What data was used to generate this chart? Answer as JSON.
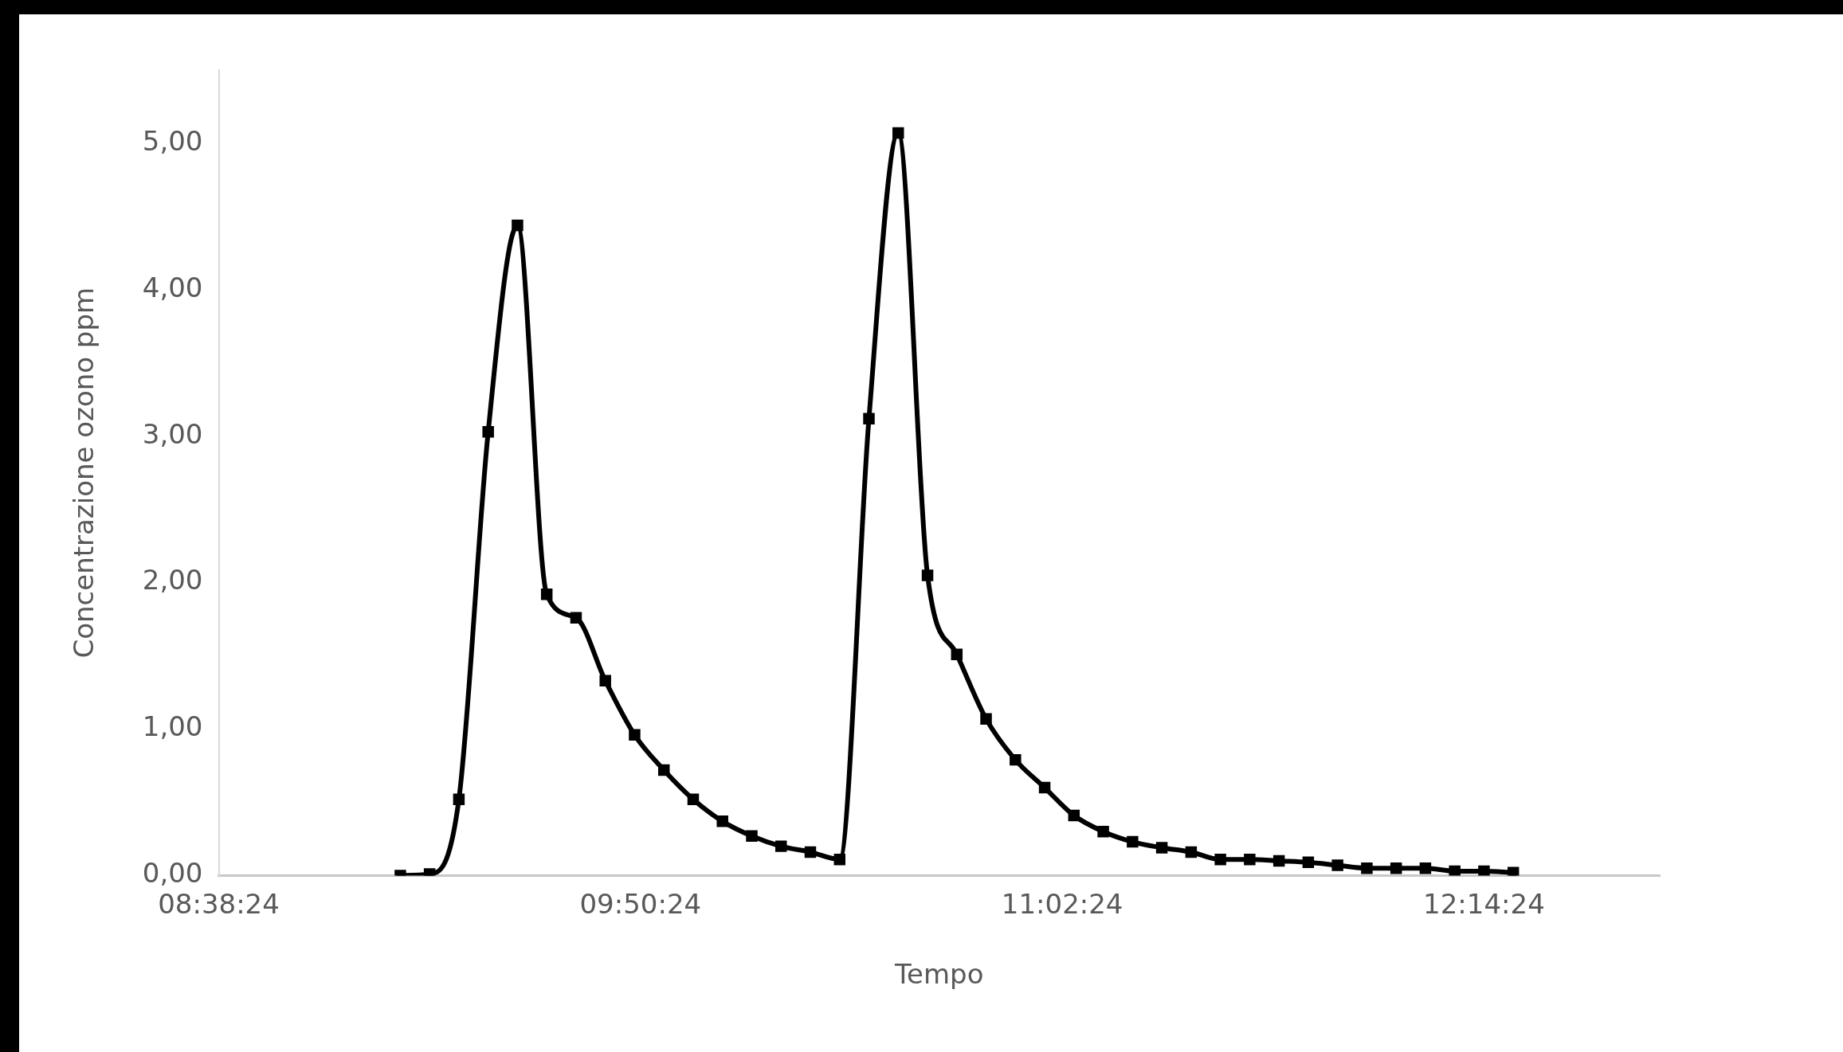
{
  "chart_data": {
    "type": "line",
    "xlabel": "Tempo",
    "ylabel": "Concentrazione ozono ppm",
    "x": [
      9.1567,
      9.24,
      9.3233,
      9.4067,
      9.49,
      9.5733,
      9.6567,
      9.74,
      9.8233,
      9.9067,
      9.99,
      10.0733,
      10.1567,
      10.24,
      10.3233,
      10.4067,
      10.49,
      10.5733,
      10.6567,
      10.74,
      10.8233,
      10.9067,
      10.99,
      11.0733,
      11.1567,
      11.24,
      11.3233,
      11.4067,
      11.49,
      11.5733,
      11.6567,
      11.74,
      11.8233,
      11.9067,
      11.99,
      12.0733,
      12.1567,
      12.24,
      12.3233
    ],
    "series": [
      {
        "color": "#000000",
        "values": [
          0.0,
          0.01,
          0.52,
          3.03,
          4.44,
          1.92,
          1.76,
          1.33,
          0.96,
          0.72,
          0.52,
          0.37,
          0.27,
          0.2,
          0.16,
          0.11,
          3.12,
          5.07,
          2.05,
          1.51,
          1.07,
          0.79,
          0.6,
          0.41,
          0.3,
          0.23,
          0.19,
          0.16,
          0.11,
          0.11,
          0.1,
          0.09,
          0.07,
          0.05,
          0.05,
          0.05,
          0.03,
          0.03,
          0.02
        ]
      }
    ],
    "xlim": [
      8.64,
      12.74
    ],
    "xticks": [
      {
        "value": 8.64,
        "label": "08:38:24"
      },
      {
        "value": 9.84,
        "label": "09:50:24"
      },
      {
        "value": 11.04,
        "label": "11:02:24"
      },
      {
        "value": 12.24,
        "label": "12:14:24"
      }
    ],
    "ylim": [
      0,
      5.5
    ],
    "yticks": [
      {
        "value": 0,
        "label": "0,00"
      },
      {
        "value": 1,
        "label": "1,00"
      },
      {
        "value": 2,
        "label": "2,00"
      },
      {
        "value": 3,
        "label": "3,00"
      },
      {
        "value": 4,
        "label": "4,00"
      },
      {
        "value": 5,
        "label": "5,00"
      }
    ],
    "grid": false,
    "legend": false,
    "marker": "square",
    "line_style": "solid"
  }
}
